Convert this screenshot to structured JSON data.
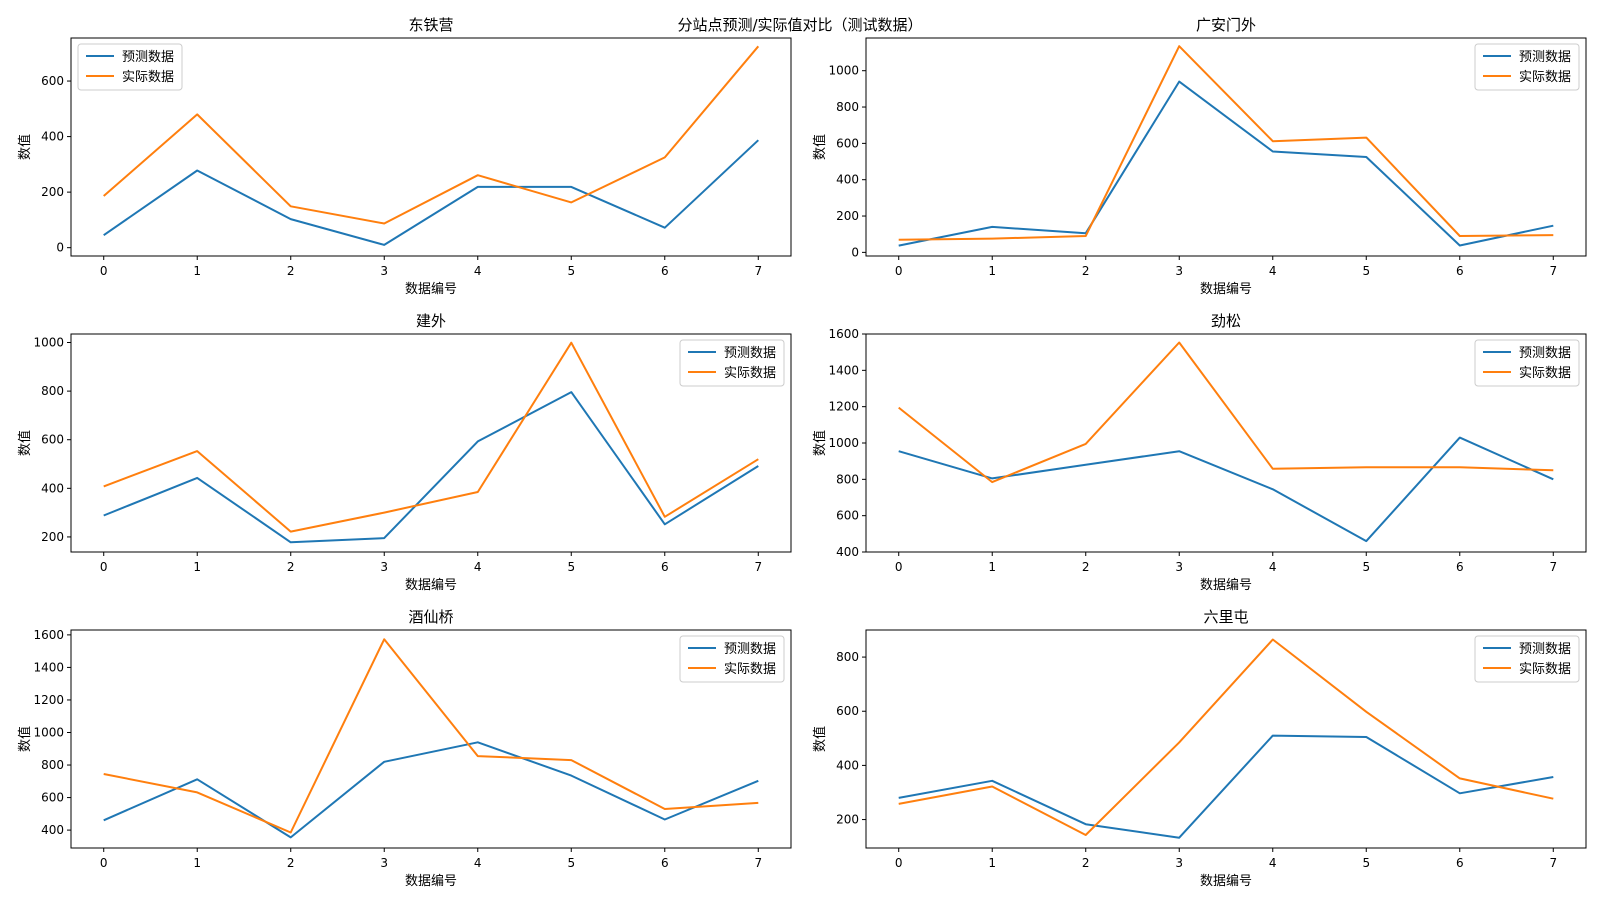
{
  "figure": {
    "suptitle": "分站点预测/实际值对比（测试数据）"
  },
  "colors": {
    "predicted": "#1f77b4",
    "actual": "#ff7f0e"
  },
  "chart_data": [
    {
      "type": "line",
      "title": "东铁营",
      "xlabel": "数据编号",
      "ylabel": "数值",
      "x": [
        0,
        1,
        2,
        3,
        4,
        5,
        6,
        7
      ],
      "xlim": [
        -0.35,
        7.35
      ],
      "ylim": [
        -30,
        755
      ],
      "yticks": [
        0,
        200,
        400,
        600
      ],
      "legend_loc": "upper-left",
      "series": [
        {
          "name": "预测数据",
          "values": [
            45,
            278,
            103,
            10,
            219,
            219,
            72,
            387
          ]
        },
        {
          "name": "实际数据",
          "values": [
            186,
            480,
            149,
            87,
            261,
            163,
            325,
            725
          ]
        }
      ]
    },
    {
      "type": "line",
      "title": "广安门外",
      "xlabel": "数据编号",
      "ylabel": "数值",
      "x": [
        0,
        1,
        2,
        3,
        4,
        5,
        6,
        7
      ],
      "xlim": [
        -0.35,
        7.35
      ],
      "ylim": [
        -20,
        1180
      ],
      "yticks": [
        0,
        200,
        400,
        600,
        800,
        1000
      ],
      "legend_loc": "upper-right",
      "series": [
        {
          "name": "预测数据",
          "values": [
            37,
            140,
            105,
            940,
            555,
            525,
            38,
            147
          ]
        },
        {
          "name": "实际数据",
          "values": [
            70,
            76,
            90,
            1135,
            612,
            632,
            90,
            95
          ]
        }
      ]
    },
    {
      "type": "line",
      "title": "建外",
      "xlabel": "数据编号",
      "ylabel": "数值",
      "x": [
        0,
        1,
        2,
        3,
        4,
        5,
        6,
        7
      ],
      "xlim": [
        -0.35,
        7.35
      ],
      "ylim": [
        138,
        1035
      ],
      "yticks": [
        200,
        400,
        600,
        800,
        1000
      ],
      "legend_loc": "upper-right",
      "series": [
        {
          "name": "预测数据",
          "values": [
            288,
            443,
            178,
            195,
            593,
            796,
            252,
            492
          ]
        },
        {
          "name": "实际数据",
          "values": [
            408,
            553,
            222,
            300,
            385,
            999,
            283,
            520
          ]
        }
      ]
    },
    {
      "type": "line",
      "title": "劲松",
      "xlabel": "数据编号",
      "ylabel": "数值",
      "x": [
        0,
        1,
        2,
        3,
        4,
        5,
        6,
        7
      ],
      "xlim": [
        -0.35,
        7.35
      ],
      "ylim": [
        400,
        1600
      ],
      "yticks": [
        400,
        600,
        800,
        1000,
        1200,
        1400,
        1600
      ],
      "legend_loc": "upper-right",
      "series": [
        {
          "name": "预测数据",
          "values": [
            955,
            805,
            880,
            955,
            745,
            460,
            1030,
            800
          ]
        },
        {
          "name": "实际数据",
          "values": [
            1195,
            785,
            995,
            1553,
            858,
            866,
            866,
            850
          ]
        }
      ]
    },
    {
      "type": "line",
      "title": "酒仙桥",
      "xlabel": "数据编号",
      "ylabel": "数值",
      "x": [
        0,
        1,
        2,
        3,
        4,
        5,
        6,
        7
      ],
      "xlim": [
        -0.35,
        7.35
      ],
      "ylim": [
        290,
        1630
      ],
      "yticks": [
        400,
        600,
        800,
        1000,
        1200,
        1400,
        1600
      ],
      "legend_loc": "upper-right",
      "series": [
        {
          "name": "预测数据",
          "values": [
            460,
            712,
            355,
            820,
            940,
            735,
            465,
            703
          ]
        },
        {
          "name": "实际数据",
          "values": [
            745,
            632,
            385,
            1573,
            855,
            830,
            530,
            567
          ]
        }
      ]
    },
    {
      "type": "line",
      "title": "六里屯",
      "xlabel": "数据编号",
      "ylabel": "数值",
      "x": [
        0,
        1,
        2,
        3,
        4,
        5,
        6,
        7
      ],
      "xlim": [
        -0.35,
        7.35
      ],
      "ylim": [
        95,
        900
      ],
      "yticks": [
        200,
        400,
        600,
        800
      ],
      "legend_loc": "upper-right",
      "series": [
        {
          "name": "预测数据",
          "values": [
            280,
            343,
            183,
            133,
            510,
            505,
            297,
            357
          ]
        },
        {
          "name": "实际数据",
          "values": [
            258,
            322,
            143,
            485,
            865,
            598,
            352,
            277
          ]
        }
      ]
    }
  ]
}
